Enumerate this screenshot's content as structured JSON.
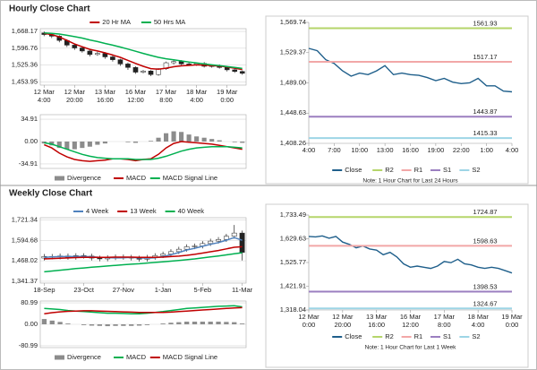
{
  "sections": [
    "Hourly Close Chart",
    "Weekly Close Chart"
  ],
  "chart_data": [
    {
      "type": "candlestick",
      "categories": [
        [
          "12 Mar",
          "4:00"
        ],
        null,
        null,
        null,
        [
          "12 Mar",
          "20:00"
        ],
        null,
        null,
        null,
        [
          "13 Mar",
          "16:00"
        ],
        null,
        null,
        null,
        [
          "16 Mar",
          "12:00"
        ],
        null,
        null,
        null,
        [
          "17 Mar",
          "8:00"
        ],
        null,
        null,
        null,
        [
          "18 Mar",
          "4:00"
        ],
        null,
        null,
        null,
        [
          "19 Mar",
          "0:00"
        ],
        null,
        null
      ],
      "open": [
        1662,
        1655,
        1648,
        1630,
        1610,
        1598,
        1585,
        1570,
        1575,
        1560,
        1548,
        1530,
        1515,
        1495,
        1500,
        1485,
        1510,
        1535,
        1540,
        1530,
        1528,
        1532,
        1520,
        1522,
        1515,
        1505,
        1498
      ],
      "high": [
        1668,
        1662,
        1652,
        1635,
        1615,
        1604,
        1590,
        1582,
        1580,
        1566,
        1552,
        1536,
        1520,
        1505,
        1504,
        1512,
        1540,
        1548,
        1546,
        1536,
        1536,
        1538,
        1526,
        1528,
        1520,
        1510,
        1502
      ],
      "low": [
        1648,
        1640,
        1622,
        1602,
        1590,
        1578,
        1562,
        1565,
        1552,
        1540,
        1522,
        1505,
        1488,
        1490,
        1478,
        1480,
        1505,
        1528,
        1525,
        1522,
        1522,
        1515,
        1514,
        1510,
        1498,
        1492,
        1484
      ],
      "close": [
        1655,
        1648,
        1630,
        1610,
        1598,
        1585,
        1570,
        1575,
        1560,
        1548,
        1530,
        1515,
        1495,
        1500,
        1485,
        1510,
        1535,
        1540,
        1530,
        1528,
        1532,
        1520,
        1522,
        1515,
        1505,
        1498,
        1490
      ],
      "series": [
        {
          "name": "20 Hr MA",
          "color": "#c00000",
          "values": [
            1660,
            1655,
            1645,
            1630,
            1615,
            1603,
            1592,
            1585,
            1577,
            1568,
            1558,
            1545,
            1532,
            1520,
            1510,
            1508,
            1512,
            1518,
            1522,
            1524,
            1526,
            1525,
            1523,
            1521,
            1517,
            1512,
            1506
          ]
        },
        {
          "name": "50 Hrs MA",
          "color": "#00b050",
          "values": [
            1662,
            1660,
            1657,
            1652,
            1646,
            1640,
            1632,
            1625,
            1617,
            1610,
            1602,
            1593,
            1584,
            1575,
            1566,
            1558,
            1552,
            1548,
            1543,
            1538,
            1534,
            1530,
            1526,
            1523,
            1519,
            1515,
            1511
          ]
        }
      ],
      "ylim": [
        1440,
        1680
      ],
      "yticks": [
        {
          "value": 1668.17,
          "label": "1,668.17"
        },
        {
          "value": 1596.76,
          "label": "1,596.76"
        },
        {
          "value": 1525.36,
          "label": "1,525.36"
        },
        {
          "value": 1453.95,
          "label": "1,453.95"
        }
      ],
      "grid": true,
      "legend": "top"
    },
    {
      "type": "macd",
      "series": [
        {
          "name": "Divergence",
          "kind": "bar",
          "color": "#8c8c8c",
          "values": [
            -3,
            -6,
            -10,
            -12,
            -12,
            -10,
            -8,
            -5,
            -3,
            0,
            0,
            -1,
            -2,
            0,
            1,
            6,
            13,
            16,
            15,
            11,
            8,
            6,
            4,
            2,
            0,
            -1,
            -2
          ]
        },
        {
          "name": "MACD",
          "kind": "line",
          "color": "#c00000",
          "values": [
            -5,
            -10,
            -18,
            -24,
            -28,
            -30,
            -31,
            -30,
            -29,
            -27,
            -27,
            -28,
            -30,
            -28,
            -27,
            -20,
            -10,
            -3,
            0,
            -1,
            -2,
            -3,
            -4,
            -6,
            -8,
            -10,
            -12
          ]
        },
        {
          "name": "MACD Signal Line",
          "kind": "line",
          "color": "#00b050",
          "values": [
            -2,
            -4,
            -8,
            -12,
            -16,
            -20,
            -23,
            -25,
            -26,
            -27,
            -27,
            -27,
            -28,
            -28,
            -28,
            -26,
            -23,
            -19,
            -15,
            -12,
            -10,
            -9,
            -8,
            -8,
            -8,
            -9,
            -10
          ]
        }
      ],
      "ylim": [
        -42,
        42
      ],
      "yticks": [
        34.91,
        {
          "value": 0,
          "label": "0.00"
        },
        -34.91
      ],
      "grid": true,
      "legend": "bottom"
    },
    {
      "type": "line",
      "categories": [
        "4:00",
        null,
        null,
        "7:00",
        null,
        null,
        "10:00",
        null,
        null,
        "13:00",
        null,
        null,
        "16:00",
        null,
        null,
        "19:00",
        null,
        null,
        "22:00",
        null,
        null,
        "1:00",
        null,
        null,
        "4:00"
      ],
      "series": [
        {
          "name": "Close",
          "color": "#1f5f8b",
          "values": [
            1535,
            1532,
            1520,
            1515,
            1505,
            1498,
            1502,
            1500,
            1505,
            1512,
            1500,
            1502,
            1500,
            1499,
            1496,
            1492,
            1495,
            1490,
            1488,
            1489,
            1495,
            1485,
            1485,
            1478,
            1477
          ]
        },
        {
          "name": "R2",
          "color": "#b5d56a",
          "level": 1561.93
        },
        {
          "name": "R1",
          "color": "#f2a7a7",
          "level": 1517.17
        },
        {
          "name": "S1",
          "color": "#9b7fc0",
          "level": 1443.87
        },
        {
          "name": "S2",
          "color": "#9dd5e6",
          "level": 1415.33
        }
      ],
      "ylim": [
        1408.26,
        1569.74
      ],
      "yticks": [
        {
          "value": 1569.74,
          "label": "1,569.74"
        },
        {
          "value": 1529.37,
          "label": "1,529.37"
        },
        {
          "value": 1489.0,
          "label": "1,489.00"
        },
        {
          "value": 1448.63,
          "label": "1,448.63"
        },
        {
          "value": 1408.26,
          "label": "1,408.26"
        }
      ],
      "grid": false,
      "legend": "bottom",
      "note": "Note: 1 Hour Chart for Last 24 Hours"
    },
    {
      "type": "candlestick",
      "categories": [
        "18-Sep",
        null,
        null,
        null,
        null,
        "23-Oct",
        null,
        null,
        null,
        null,
        "27-Nov",
        null,
        null,
        null,
        null,
        "1-Jan",
        null,
        null,
        null,
        null,
        "5-Feb",
        null,
        null,
        null,
        null,
        "11-Mar"
      ],
      "open": [
        1485,
        1495,
        1492,
        1498,
        1490,
        1500,
        1497,
        1485,
        1480,
        1488,
        1492,
        1490,
        1485,
        1478,
        1490,
        1500,
        1510,
        1525,
        1540,
        1555,
        1560,
        1575,
        1590,
        1600,
        1620,
        1640
      ],
      "high": [
        1510,
        1510,
        1513,
        1513,
        1515,
        1515,
        1512,
        1500,
        1503,
        1507,
        1507,
        1505,
        1500,
        1505,
        1515,
        1525,
        1540,
        1555,
        1570,
        1575,
        1590,
        1605,
        1615,
        1635,
        1690,
        1655
      ],
      "low": [
        1470,
        1477,
        1477,
        1475,
        1475,
        1482,
        1470,
        1465,
        1465,
        1473,
        1475,
        1470,
        1463,
        1463,
        1475,
        1485,
        1495,
        1510,
        1525,
        1540,
        1545,
        1560,
        1575,
        1585,
        1605,
        1470
      ],
      "close": [
        1495,
        1492,
        1498,
        1490,
        1500,
        1497,
        1485,
        1480,
        1488,
        1492,
        1490,
        1485,
        1478,
        1490,
        1500,
        1510,
        1525,
        1540,
        1555,
        1560,
        1575,
        1590,
        1600,
        1620,
        1640,
        1520
      ],
      "series": [
        {
          "name": "4 Week",
          "color": "#4f81bd",
          "values": [
            1490,
            1492,
            1494,
            1494,
            1495,
            1495,
            1493,
            1490,
            1488,
            1486,
            1487,
            1489,
            1486,
            1485,
            1487,
            1494,
            1506,
            1519,
            1535,
            1545,
            1558,
            1570,
            1581,
            1596,
            1612,
            1595
          ]
        },
        {
          "name": "13 Week",
          "color": "#c00000",
          "values": [
            1480,
            1482,
            1484,
            1486,
            1488,
            1489,
            1490,
            1490,
            1490,
            1491,
            1491,
            1491,
            1490,
            1490,
            1490,
            1491,
            1494,
            1497,
            1502,
            1508,
            1516,
            1524,
            1532,
            1542,
            1552,
            1555
          ]
        },
        {
          "name": "40 Week",
          "color": "#00b050",
          "values": [
            1400,
            1405,
            1410,
            1415,
            1420,
            1424,
            1428,
            1432,
            1436,
            1440,
            1444,
            1447,
            1450,
            1454,
            1458,
            1462,
            1466,
            1470,
            1475,
            1480,
            1486,
            1492,
            1498,
            1505,
            1512,
            1518
          ]
        }
      ],
      "ylim": [
        1330,
        1735
      ],
      "yticks": [
        {
          "value": 1721.34,
          "label": "1,721.34"
        },
        {
          "value": 1594.68,
          "label": "1,594.68"
        },
        {
          "value": 1468.02,
          "label": "1,468.02"
        },
        {
          "value": 1341.37,
          "label": "1,341.37"
        }
      ],
      "grid": true,
      "legend": "top"
    },
    {
      "type": "macd",
      "series": [
        {
          "name": "Divergence",
          "kind": "bar",
          "color": "#8c8c8c",
          "values": [
            20,
            14,
            9,
            3,
            0,
            -3,
            -5,
            -6,
            -7,
            -6,
            -6,
            -6,
            -5,
            -3,
            0,
            3,
            6,
            8,
            10,
            10,
            10,
            10,
            10,
            9,
            8,
            3
          ]
        },
        {
          "name": "MACD",
          "kind": "line",
          "color": "#00b050",
          "values": [
            60,
            58,
            56,
            52,
            50,
            48,
            46,
            44,
            42,
            42,
            41,
            40,
            40,
            42,
            45,
            48,
            52,
            56,
            60,
            62,
            64,
            66,
            68,
            69,
            70,
            66
          ]
        },
        {
          "name": "MACD Signal Line",
          "kind": "line",
          "color": "#c00000",
          "values": [
            40,
            44,
            47,
            49,
            50,
            51,
            51,
            50,
            49,
            48,
            47,
            46,
            45,
            45,
            45,
            45,
            46,
            48,
            50,
            52,
            54,
            56,
            58,
            60,
            62,
            63
          ]
        }
      ],
      "ylim": [
        -88,
        88
      ],
      "yticks": [
        80.99,
        {
          "value": 0,
          "label": "0.00"
        },
        -80.99
      ],
      "grid": true,
      "legend": "bottom"
    },
    {
      "type": "line",
      "categories": [
        [
          "12 Mar",
          "0:00"
        ],
        null,
        null,
        null,
        null,
        [
          "12 Mar",
          "20:00"
        ],
        null,
        null,
        null,
        null,
        [
          "13 Mar",
          "16:00"
        ],
        null,
        null,
        null,
        null,
        [
          "16 Mar",
          "12:00"
        ],
        null,
        null,
        null,
        null,
        [
          "17 Mar",
          "8:00"
        ],
        null,
        null,
        null,
        null,
        [
          "18 Mar",
          "4:00"
        ],
        null,
        null,
        null,
        null,
        [
          "19 Mar",
          "0:00"
        ]
      ],
      "series": [
        {
          "name": "Close",
          "color": "#1f5f8b",
          "values": [
            1640,
            1638,
            1642,
            1632,
            1640,
            1615,
            1605,
            1590,
            1598,
            1585,
            1580,
            1560,
            1570,
            1550,
            1520,
            1505,
            1510,
            1505,
            1500,
            1510,
            1530,
            1525,
            1540,
            1520,
            1515,
            1505,
            1500,
            1505,
            1500,
            1490,
            1480
          ]
        },
        {
          "name": "R2",
          "color": "#b5d56a",
          "level": 1724.87
        },
        {
          "name": "R1",
          "color": "#f2a7a7",
          "level": 1598.63
        },
        {
          "name": "S1",
          "color": "#9b7fc0",
          "level": 1398.53
        },
        {
          "name": "S2",
          "color": "#9dd5e6",
          "level": 1324.67
        }
      ],
      "ylim": [
        1318.04,
        1733.49
      ],
      "yticks": [
        {
          "value": 1733.49,
          "label": "1,733.49"
        },
        {
          "value": 1629.63,
          "label": "1,629.63"
        },
        {
          "value": 1525.77,
          "label": "1,525.77"
        },
        {
          "value": 1421.91,
          "label": "1,421.91"
        },
        {
          "value": 1318.04,
          "label": "1,318.04"
        }
      ],
      "grid": false,
      "legend": "bottom",
      "note": "Note: 1 Hour Chart for Last 1 Week"
    }
  ]
}
